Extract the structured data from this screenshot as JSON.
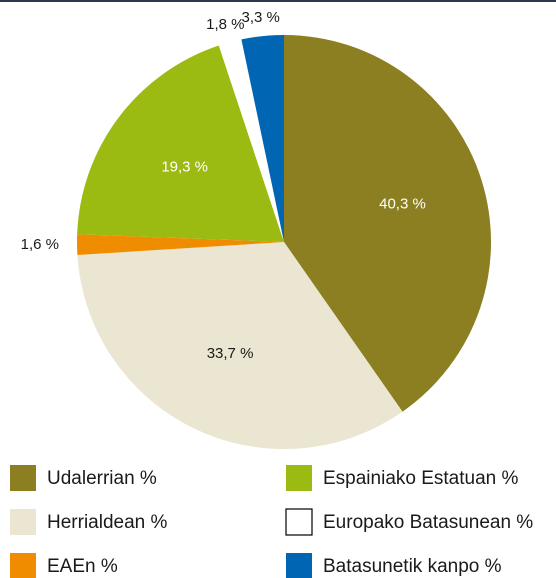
{
  "chart_data": {
    "type": "pie",
    "series": [
      {
        "name": "Udalerrian %",
        "color": "#8b7f22",
        "values": [
          40.3
        ],
        "value_labels": [
          "40,3 %"
        ]
      },
      {
        "name": "Herrialdean %",
        "color": "#ebe6d2",
        "values": [
          33.7
        ],
        "value_labels": [
          "33,7 %"
        ]
      },
      {
        "name": "EAEn %",
        "color": "#f08c00",
        "values": [
          1.6
        ],
        "value_labels": [
          "1,6 %"
        ]
      },
      {
        "name": "Espainiako Estatuan %",
        "color": "#9bbb12",
        "values": [
          19.3
        ],
        "value_labels": [
          "19,3 %"
        ]
      },
      {
        "name": "Europako Batasunean %",
        "color": "#ffffff",
        "values": [
          1.8
        ],
        "value_labels": [
          "1,8 %"
        ]
      },
      {
        "name": "Batasunetik kanpo %",
        "color": "#0066b3",
        "values": [
          3.3
        ],
        "value_labels": [
          "3,3 %"
        ]
      }
    ],
    "legend": "bottom"
  }
}
